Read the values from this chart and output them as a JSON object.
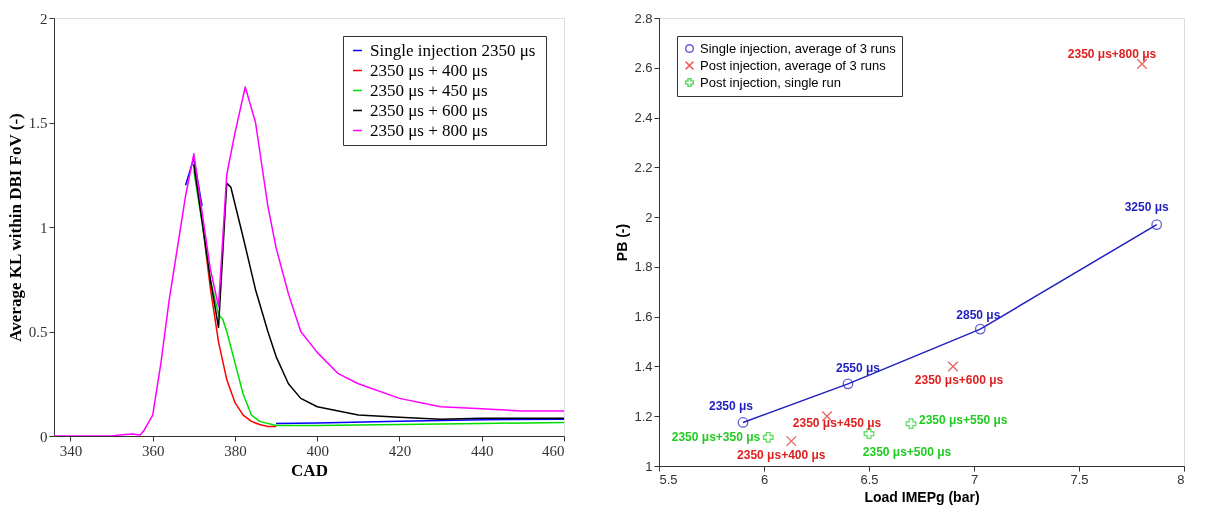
{
  "chart_data": [
    {
      "type": "line",
      "xlabel": "CAD",
      "ylabel": "Average KL within DBI FoV (-)",
      "xlim": [
        336,
        460
      ],
      "ylim": [
        0,
        2
      ],
      "xticks": [
        340,
        360,
        380,
        400,
        420,
        440,
        460
      ],
      "yticks": [
        0,
        0.5,
        1,
        1.5,
        2
      ],
      "grid": false,
      "legend": "top right",
      "series": [
        {
          "name": "Single injection 2350  μs",
          "color": "#0000ff",
          "x": [
            368,
            370,
            372,
            388,
            390,
            400,
            420,
            440,
            460
          ],
          "values": [
            1.2,
            1.33,
            1.1,
            null,
            0.06,
            0.062,
            0.07,
            0.078,
            0.08
          ]
        },
        {
          "name": "2350  μs + 400  μs",
          "color": "#ff0000",
          "x": [
            370,
            372,
            374,
            376,
            378,
            380,
            382,
            384,
            386,
            388,
            390
          ],
          "values": [
            1.3,
            1.03,
            0.71,
            0.45,
            0.27,
            0.16,
            0.1,
            0.07,
            0.055,
            0.045,
            0.045
          ]
        },
        {
          "name": "2350  μs + 450  μs",
          "color": "#00dd00",
          "x": [
            370,
            372,
            374,
            376,
            377,
            378,
            380,
            382,
            384,
            386,
            390,
            400,
            420,
            440,
            460
          ],
          "values": [
            1.27,
            1.02,
            0.75,
            0.58,
            0.56,
            0.5,
            0.35,
            0.2,
            0.1,
            0.07,
            0.05,
            0.05,
            0.055,
            0.06,
            0.065
          ]
        },
        {
          "name": "2350  μs + 600  μs",
          "color": "#000000",
          "x": [
            370,
            372,
            374,
            376,
            378,
            379,
            382,
            385,
            388,
            390,
            393,
            396,
            400,
            410,
            420,
            430,
            440,
            460
          ],
          "values": [
            1.3,
            1.03,
            0.75,
            0.52,
            1.21,
            1.19,
            0.95,
            0.7,
            0.5,
            0.38,
            0.25,
            0.18,
            0.14,
            0.1,
            0.09,
            0.08,
            0.085,
            0.085
          ]
        },
        {
          "name": "2350  μs + 800  μs",
          "color": "#ff00ff",
          "x": [
            336,
            350,
            352,
            355,
            357,
            358,
            360,
            362,
            364,
            366,
            368,
            370,
            372,
            374,
            376,
            378,
            380,
            382.5,
            385,
            388,
            390,
            393,
            396,
            400,
            405,
            410,
            420,
            430,
            440,
            450,
            460
          ],
          "values": [
            0,
            0,
            0.005,
            0.01,
            0.005,
            0.03,
            0.1,
            0.35,
            0.65,
            0.9,
            1.15,
            1.35,
            1.07,
            0.8,
            0.62,
            1.25,
            1.45,
            1.67,
            1.5,
            1.1,
            0.9,
            0.68,
            0.5,
            0.4,
            0.3,
            0.25,
            0.18,
            0.14,
            0.13,
            0.12,
            0.12
          ]
        }
      ]
    },
    {
      "type": "scatter",
      "xlabel": "Load IMEPg (bar)",
      "ylabel": "PB (-)",
      "xlim": [
        5.5,
        8
      ],
      "ylim": [
        1,
        2.8
      ],
      "xticks": [
        5.5,
        6,
        6.5,
        7,
        7.5,
        8
      ],
      "yticks": [
        1,
        1.2,
        1.4,
        1.6,
        1.8,
        2,
        2.2,
        2.4,
        2.6,
        2.8
      ],
      "grid": false,
      "legend": "top left",
      "series": [
        {
          "name": "Single injection, average of 3 runs",
          "type": "line",
          "marker": "circle",
          "color": "#1f1fbf",
          "x": [
            5.9,
            6.4,
            7.03,
            7.87
          ],
          "values": [
            1.175,
            1.33,
            1.55,
            1.97
          ]
        },
        {
          "name": "Post injection, average of 3 runs",
          "marker": "x",
          "color": "#e02020",
          "x": [
            6.13,
            6.3,
            6.9,
            7.8
          ],
          "values": [
            1.1,
            1.2,
            1.4,
            2.615
          ]
        },
        {
          "name": "Post injection, single run",
          "marker": "cross",
          "color": "#20cc20",
          "x": [
            6.02,
            6.5,
            6.7
          ],
          "values": [
            1.115,
            1.13,
            1.17
          ]
        }
      ],
      "annotations": [
        {
          "text": "2350 μs",
          "x": 5.9,
          "y": 1.175
        },
        {
          "text": "2550 μs",
          "x": 6.4,
          "y": 1.33
        },
        {
          "text": "2850 μs",
          "x": 7.03,
          "y": 1.55
        },
        {
          "text": "3250 μs",
          "x": 7.87,
          "y": 1.97
        },
        {
          "text": "2350 μs+400 μs",
          "x": 6.13,
          "y": 1.1
        },
        {
          "text": "2350 μs+450 μs",
          "x": 6.3,
          "y": 1.2
        },
        {
          "text": "2350 μs+600 μs",
          "x": 6.9,
          "y": 1.4
        },
        {
          "text": "2350 μs+800 μs",
          "x": 7.8,
          "y": 2.615
        },
        {
          "text": "2350 μs+350 μs",
          "x": 6.02,
          "y": 1.115
        },
        {
          "text": "2350 μs+500 μs",
          "x": 6.5,
          "y": 1.13
        },
        {
          "text": "2350 μs+550 μs",
          "x": 6.7,
          "y": 1.17
        }
      ]
    }
  ]
}
